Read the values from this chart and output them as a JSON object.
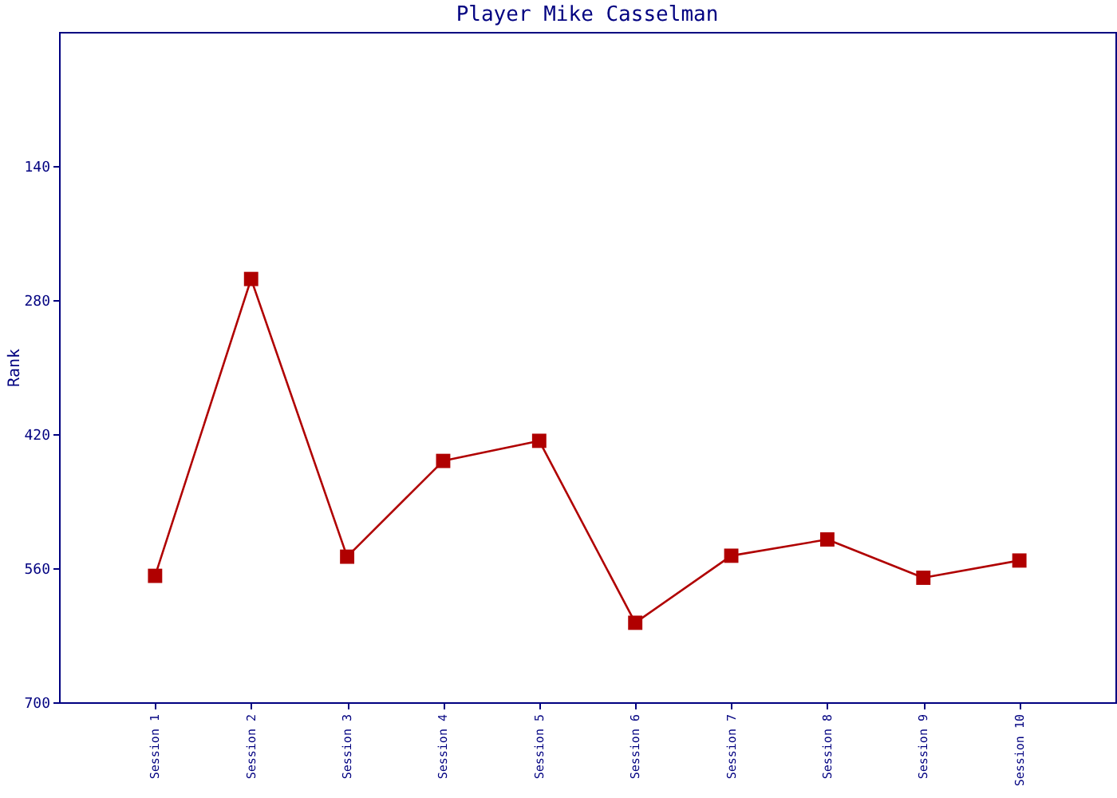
{
  "chart_data": {
    "type": "line",
    "title": "Player Mike Casselman",
    "ylabel": "Rank",
    "categories": [
      "Session 1",
      "Session 2",
      "Session 3",
      "Session 4",
      "Session 5",
      "Session 6",
      "Session 7",
      "Session 8",
      "Session 9",
      "Session 10"
    ],
    "series": [
      {
        "color": "#b00000",
        "values": [
          568,
          258,
          548,
          448,
          427,
          617,
          547,
          530,
          570,
          552
        ]
      }
    ],
    "ylim": [
      700,
      0
    ],
    "yticks": [
      140,
      280,
      420,
      560,
      700
    ],
    "grid": false,
    "legend": false,
    "marker": "square",
    "line_style": "solid"
  }
}
